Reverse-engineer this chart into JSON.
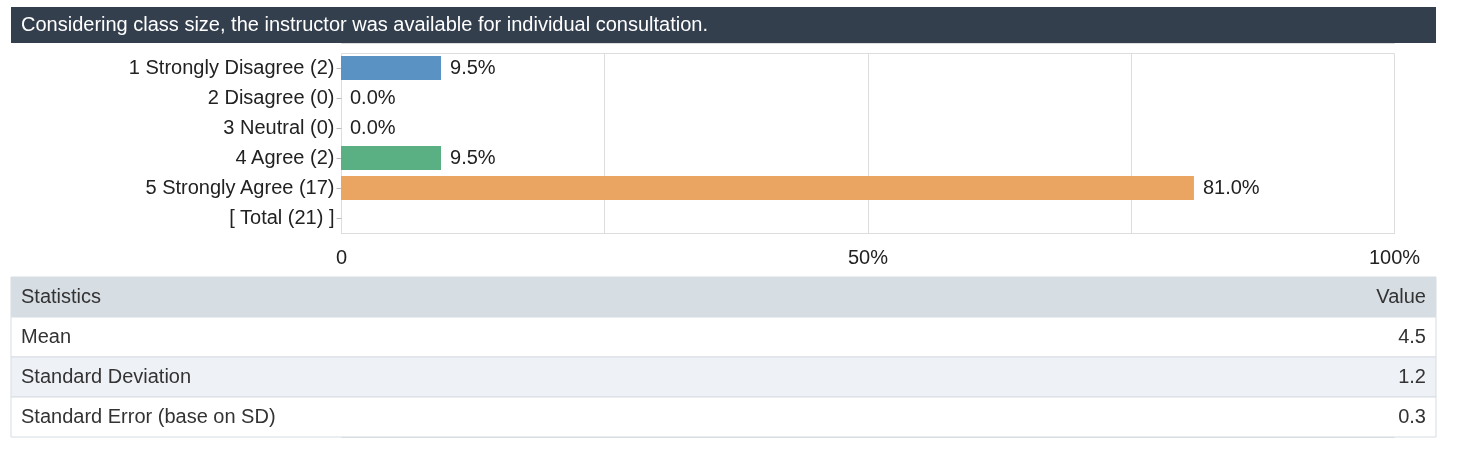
{
  "chart_data": {
    "type": "bar",
    "orientation": "horizontal",
    "title": "Considering class size, the instructor was available for individual consultation.",
    "categories": [
      "1 Strongly Disagree (2)",
      "2 Disagree (0)",
      "3 Neutral (0)",
      "4 Agree (2)",
      "5 Strongly Agree (17)",
      "[ Total (21) ]"
    ],
    "values": [
      9.5,
      0,
      0,
      9.5,
      81.0,
      null
    ],
    "colors": [
      "#5a93c3",
      "#5a93c3",
      "#5a93c3",
      "#5bb083",
      "#eba563",
      "#5a93c3"
    ],
    "value_labels": [
      "9.5%",
      "0.0%",
      "0.0%",
      "9.5%",
      "81.0%",
      null
    ],
    "xlim": [
      0,
      100
    ],
    "xticks": [
      0,
      {
        "value": 25,
        "label": null
      },
      {
        "value": 50,
        "label": "50%"
      },
      {
        "value": 75,
        "label": null
      },
      {
        "value": 100,
        "label": "100%"
      }
    ],
    "grid": "x",
    "annotations": [
      "Statistics",
      "Value",
      "Mean",
      "4.5",
      "Standard Deviation",
      "1.2",
      "Standard Error (base on SD)",
      "0.3"
    ]
  }
}
